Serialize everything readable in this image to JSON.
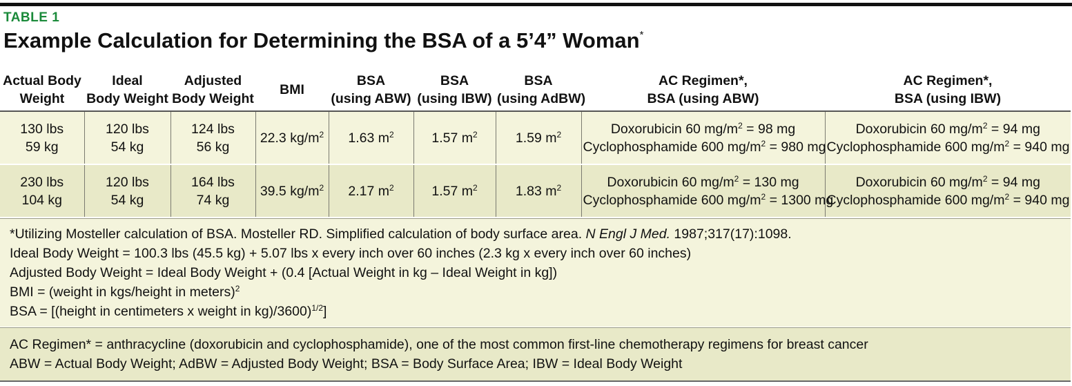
{
  "label": "TABLE 1",
  "title": "Example Calculation for Determining the BSA of a 5’4” Woman",
  "title_mark": "*",
  "headers": [
    [
      "Actual Body",
      "Weight"
    ],
    [
      "Ideal",
      "Body Weight"
    ],
    [
      "Adjusted",
      "Body Weight"
    ],
    [
      "BMI"
    ],
    [
      "BSA",
      "(using ABW)"
    ],
    [
      "BSA",
      "(using IBW)"
    ],
    [
      "BSA",
      "(using AdBW)"
    ],
    [
      "AC Regimen*,",
      "BSA (using ABW)"
    ],
    [
      "AC Regimen*,",
      "BSA (using IBW)"
    ]
  ],
  "rows": [
    {
      "actual": [
        "130 lbs",
        "59 kg"
      ],
      "ideal": [
        "120 lbs",
        "54 kg"
      ],
      "adjusted": [
        "124 lbs",
        "56 kg"
      ],
      "bmi": "22.3 kg/m",
      "bsa_abw": "1.63 m",
      "bsa_ibw": "1.57 m",
      "bsa_adbw": "1.59 m",
      "regimen_abw": [
        {
          "pre": "Doxorubicin 60 mg/m",
          "post": " = 98 mg"
        },
        {
          "pre": "Cyclophosphamide 600 mg/m",
          "post": " = 980 mg"
        }
      ],
      "regimen_ibw": [
        {
          "pre": "Doxorubicin 60 mg/m",
          "post": " = 94 mg"
        },
        {
          "pre": "Cyclophosphamide 600 mg/m",
          "post": " = 940 mg"
        }
      ]
    },
    {
      "actual": [
        "230 lbs",
        "104 kg"
      ],
      "ideal": [
        "120 lbs",
        "54 kg"
      ],
      "adjusted": [
        "164 lbs",
        "74 kg"
      ],
      "bmi": "39.5 kg/m",
      "bsa_abw": "2.17 m",
      "bsa_ibw": "1.57 m",
      "bsa_adbw": "1.83 m",
      "regimen_abw": [
        {
          "pre": "Doxorubicin 60 mg/m",
          "post": " = 130 mg"
        },
        {
          "pre": "Cyclophosphamide 600 mg/m",
          "post": " = 1300 mg"
        }
      ],
      "regimen_ibw": [
        {
          "pre": "Doxorubicin 60 mg/m",
          "post": " = 94 mg"
        },
        {
          "pre": "Cyclophosphamide 600 mg/m",
          "post": " = 940 mg"
        }
      ]
    }
  ],
  "superscript_2": "2",
  "notes": {
    "line1_pre": "*Utilizing Mosteller calculation of BSA. Mosteller RD. Simplified calculation of body surface area. ",
    "line1_journal": "N Engl J Med.",
    "line1_post": " 1987;317(17):1098.",
    "line2": "Ideal Body Weight = 100.3 lbs (45.5 kg) + 5.07 lbs x every inch over 60 inches (2.3 kg x every inch over 60 inches)",
    "line3": "Adjusted Body Weight = Ideal Body Weight + (0.4 [Actual Weight in kg – Ideal Weight in kg])",
    "line4": "BMI = (weight in kgs/height in meters)",
    "line5": "BSA = [(height in centimeters x weight in kg)/3600)",
    "line5_exp": "1/2",
    "line5_end": "]"
  },
  "abbreviations": {
    "line1": "AC Regimen* = anthracycline (doxorubicin and cyclophosphamide), one of the most common first-line chemotherapy regimens for breast cancer",
    "line2": "ABW = Actual Body Weight; AdBW = Adjusted Body Weight; BSA = Body Surface Area; IBW = Ideal Body Weight"
  }
}
